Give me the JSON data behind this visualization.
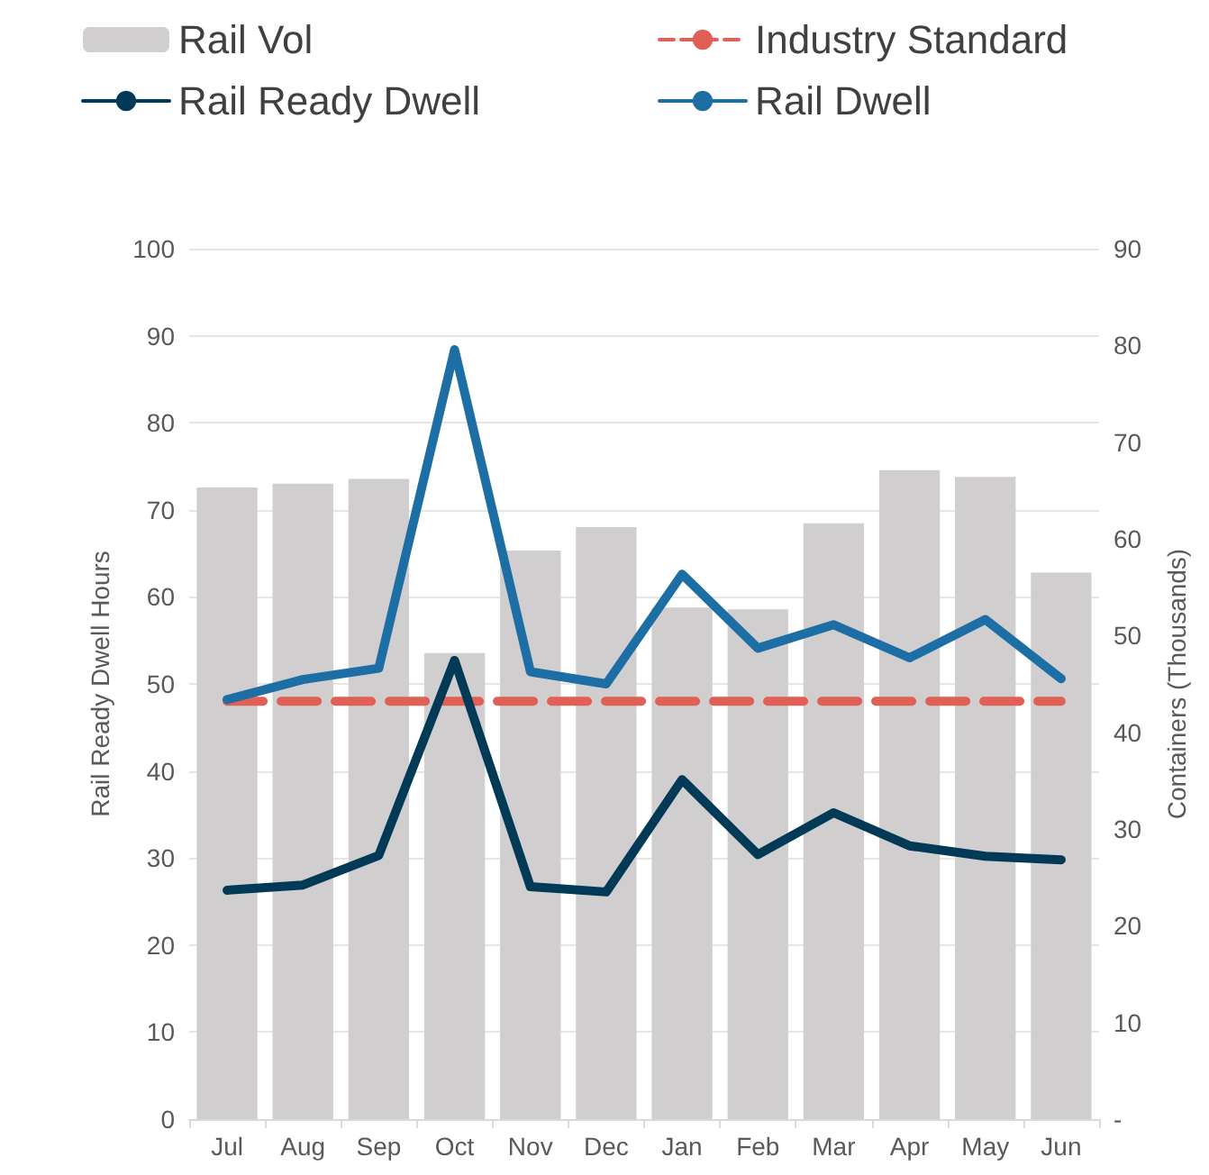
{
  "chart_data": {
    "type": "line",
    "ylabel": "Rail Ready Dwell Hours",
    "y2label": "Containers (Thousands)",
    "categories": [
      "Jul",
      "Aug",
      "Sep",
      "Oct",
      "Nov",
      "Dec",
      "Jan",
      "Feb",
      "Mar",
      "Apr",
      "May",
      "Jun"
    ],
    "series": [
      {
        "name": "Rail Vol",
        "type": "bar",
        "axis": "y2",
        "color": "#d0cece",
        "values": [
          65.3,
          65.7,
          66.2,
          48.2,
          58.8,
          61.2,
          52.9,
          52.7,
          61.6,
          67.1,
          66.4,
          56.5
        ]
      },
      {
        "name": "Industry Standard",
        "color": "#e06055",
        "line_style": "dashed",
        "values": [
          48,
          48,
          48,
          48,
          48,
          48,
          48,
          48,
          48,
          48,
          48,
          48
        ]
      },
      {
        "name": "Rail Ready Dwell",
        "color": "#003a57",
        "values": [
          26.3,
          26.9,
          30.3,
          52.7,
          26.7,
          26.1,
          39.0,
          30.4,
          35.2,
          31.4,
          30.2,
          29.8
        ]
      },
      {
        "name": "Rail Dwell",
        "color": "#1c6ea4",
        "values": [
          48.2,
          50.5,
          51.8,
          88.4,
          51.4,
          50.0,
          62.6,
          54.1,
          56.8,
          53.0,
          57.4,
          50.6
        ]
      }
    ],
    "ylim": [
      0,
      100
    ],
    "yticks": [
      0,
      10,
      20,
      30,
      40,
      50,
      60,
      70,
      80,
      90,
      100
    ],
    "y2lim": [
      0,
      90
    ],
    "y2ticks": [
      {
        "value": 0,
        "label": "-"
      },
      10,
      20,
      30,
      40,
      50,
      60,
      70,
      80,
      90
    ],
    "grid": "y",
    "legend": "top",
    "marker": "none",
    "line_style": "solid"
  }
}
